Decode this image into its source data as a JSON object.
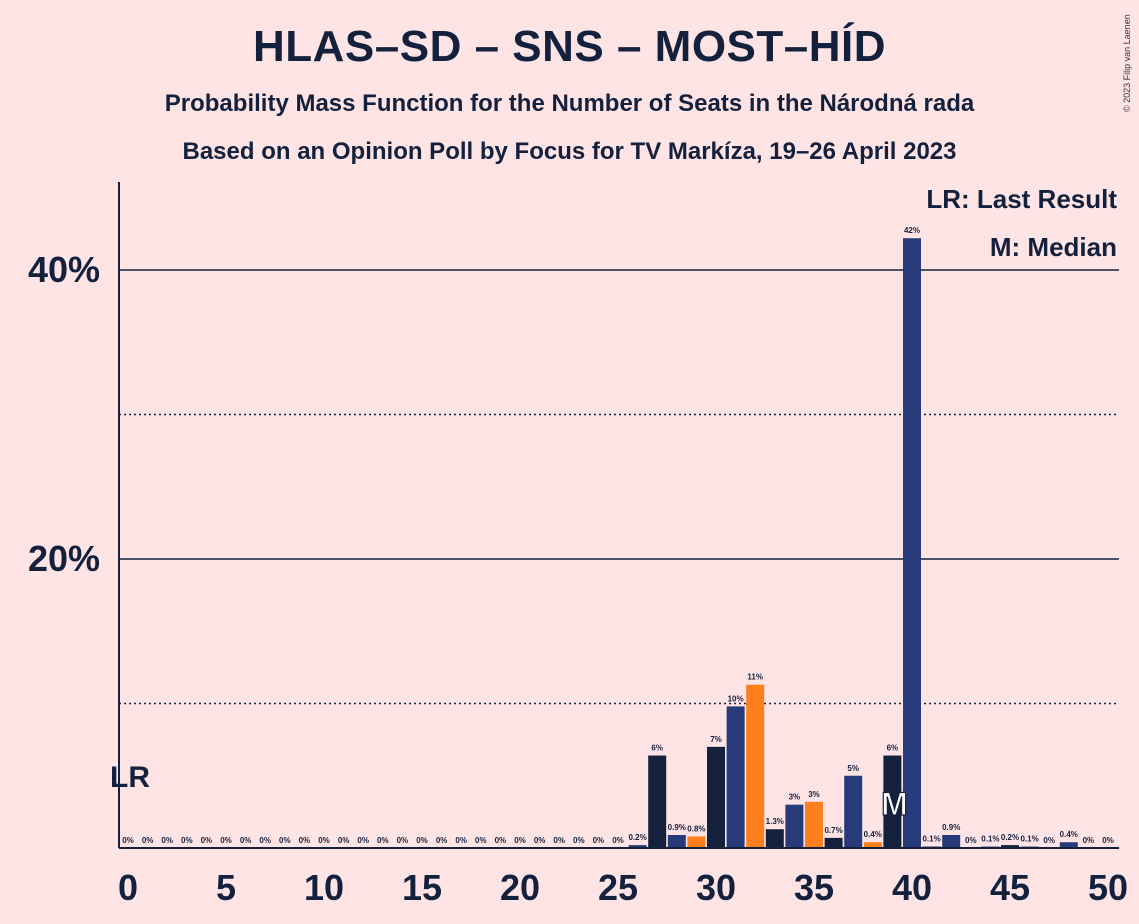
{
  "title": "HLAS–SD – SNS – MOST–HÍD",
  "subtitle_1": "Probability Mass Function for the Number of Seats in the Národná rada",
  "subtitle_2": "Based on an Opinion Poll by Focus for TV Markíza, 19–26 April 2023",
  "copyright": "© 2023 Filip van Laenen",
  "legend": {
    "last_result": "LR: Last Result",
    "median": "M: Median"
  },
  "markers": {
    "last_result_label": "LR",
    "median_label": "M"
  },
  "colors": {
    "background": "#FFE4E6",
    "navy": "#14213D",
    "blue": "#273B7A",
    "orange": "#FF7F1E"
  },
  "chart_data": {
    "type": "bar",
    "x": [
      0,
      1,
      2,
      3,
      4,
      5,
      6,
      7,
      8,
      9,
      10,
      11,
      12,
      13,
      14,
      15,
      16,
      17,
      18,
      19,
      20,
      21,
      22,
      23,
      24,
      25,
      26,
      27,
      28,
      29,
      30,
      31,
      32,
      33,
      34,
      35,
      36,
      37,
      38,
      39,
      40,
      41,
      42,
      43,
      44,
      45,
      46,
      47,
      48,
      49,
      50
    ],
    "values": [
      0,
      0,
      0,
      0,
      0,
      0,
      0,
      0,
      0,
      0,
      0,
      0,
      0,
      0,
      0,
      0,
      0,
      0,
      0,
      0,
      0,
      0,
      0,
      0,
      0,
      0,
      0.2,
      6.4,
      0.9,
      0.8,
      7.0,
      9.8,
      11.3,
      1.3,
      3.0,
      3.2,
      0.7,
      5.0,
      0.4,
      6.4,
      42.2,
      0.1,
      0.9,
      0,
      0.1,
      0.2,
      0.1,
      0,
      0.4,
      0,
      0
    ],
    "value_labels": [
      "0%",
      "0%",
      "0%",
      "0%",
      "0%",
      "0%",
      "0%",
      "0%",
      "0%",
      "0%",
      "0%",
      "0%",
      "0%",
      "0%",
      "0%",
      "0%",
      "0%",
      "0%",
      "0%",
      "0%",
      "0%",
      "0%",
      "0%",
      "0%",
      "0%",
      "0%",
      "0.2%",
      "6%",
      "0.9%",
      "0.8%",
      "7%",
      "10%",
      "11%",
      "1.3%",
      "3%",
      "3%",
      "0.7%",
      "5%",
      "0.4%",
      "6%",
      "42%",
      "0.1%",
      "0.9%",
      "0%",
      "0.1%",
      "0.2%",
      "0.1%",
      "0%",
      "0.4%",
      "0%",
      "0%"
    ],
    "bar_colors": [
      "blue",
      "blue",
      "blue",
      "blue",
      "blue",
      "blue",
      "blue",
      "blue",
      "blue",
      "blue",
      "blue",
      "blue",
      "blue",
      "blue",
      "blue",
      "blue",
      "blue",
      "blue",
      "blue",
      "blue",
      "blue",
      "blue",
      "blue",
      "blue",
      "blue",
      "blue",
      "blue",
      "navy",
      "blue",
      "orange",
      "navy",
      "blue",
      "orange",
      "navy",
      "blue",
      "orange",
      "navy",
      "blue",
      "orange",
      "navy",
      "blue",
      "navy",
      "blue",
      "navy",
      "blue",
      "navy",
      "blue",
      "navy",
      "blue",
      "navy",
      "blue"
    ],
    "x_ticks": [
      0,
      5,
      10,
      15,
      20,
      25,
      30,
      35,
      40,
      45,
      50
    ],
    "y_ticks": [
      {
        "value": 20,
        "label": "20%"
      },
      {
        "value": 40,
        "label": "40%"
      }
    ],
    "dotted_gridlines": [
      10,
      30
    ],
    "ylim": [
      0,
      45
    ],
    "xlim": [
      0,
      50
    ],
    "last_result_seat": 0,
    "median_seat": 39
  }
}
